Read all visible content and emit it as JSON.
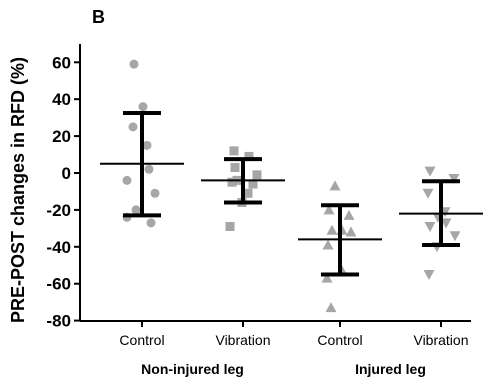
{
  "chart_data": {
    "type": "scatter",
    "panel_label": "B",
    "title": "",
    "xlabel": "",
    "ylabel": "PRE-POST changes in RFD (%)",
    "ylim": [
      -80,
      70
    ],
    "yticks": [
      "60",
      "40",
      "20",
      "0",
      "-20",
      "-40",
      "-60",
      "-80"
    ],
    "ytick_values": [
      60,
      40,
      20,
      0,
      -20,
      -40,
      -60,
      -80
    ],
    "grid": false,
    "categories": [
      "Control",
      "Vibration",
      "Control",
      "Vibration"
    ],
    "groups": [
      {
        "label": "Non-injured leg",
        "categories": [
          0,
          1
        ]
      },
      {
        "label": "Injured leg",
        "categories": [
          2,
          3
        ]
      }
    ],
    "series": [
      {
        "category_index": 0,
        "marker": "circle",
        "color": "#a6a6a6",
        "values": [
          59,
          36,
          25,
          15,
          2,
          -4,
          -11,
          -20,
          -24,
          -27
        ],
        "mean": 5,
        "sd_upper": 32.5,
        "sd_lower": -23
      },
      {
        "category_index": 1,
        "marker": "square",
        "color": "#a6a6a6",
        "values": [
          12,
          9,
          3,
          -1,
          -4,
          -5,
          -6,
          -11,
          -16,
          -29
        ],
        "mean": -4,
        "sd_upper": 7.5,
        "sd_lower": -16
      },
      {
        "category_index": 2,
        "marker": "triangle-up",
        "color": "#a6a6a6",
        "values": [
          -7,
          -20,
          -23,
          -31,
          -31,
          -32,
          -39,
          -53,
          -57,
          -73
        ],
        "mean": -36,
        "sd_upper": -17.5,
        "sd_lower": -55
      },
      {
        "category_index": 3,
        "marker": "triangle-down",
        "color": "#a6a6a6",
        "values": [
          1,
          -3,
          -11,
          -21,
          -24,
          -27,
          -29,
          -34,
          -40,
          -55
        ],
        "mean": -22,
        "sd_upper": -4.5,
        "sd_lower": -39
      }
    ],
    "colors": {
      "points": "#a6a6a6",
      "bars": "#000000",
      "axis": "#000000"
    }
  }
}
